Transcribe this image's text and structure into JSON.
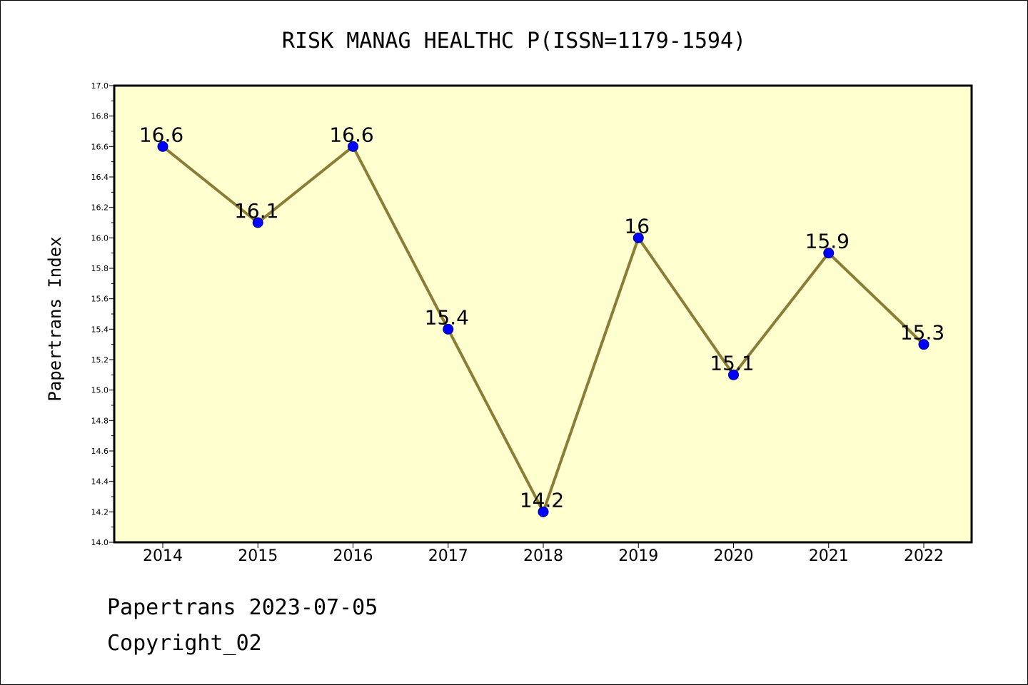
{
  "chart_data": {
    "type": "line",
    "title": "RISK MANAG HEALTHC P(ISSN=1179-1594)",
    "xlabel": "",
    "ylabel": "Papertrans Index",
    "x": [
      "2014",
      "2015",
      "2016",
      "2017",
      "2018",
      "2019",
      "2020",
      "2021",
      "2022"
    ],
    "series": [
      {
        "values": [
          16.6,
          16.1,
          16.6,
          15.4,
          14.2,
          16.0,
          15.1,
          15.9,
          15.3
        ],
        "labels": [
          "16.6",
          "16.1",
          "16.6",
          "15.4",
          "14.2",
          "16",
          "15.1",
          "15.9",
          "15.3"
        ]
      }
    ],
    "ylim": [
      14.0,
      17.0
    ],
    "yticks": [
      "14.0",
      "14.2",
      "14.4",
      "14.6",
      "14.8",
      "15.0",
      "15.2",
      "15.4",
      "15.6",
      "15.8",
      "16.0",
      "16.2",
      "16.4",
      "16.6",
      "16.8",
      "17.0"
    ],
    "grid": false,
    "colors": {
      "plot_background": "#ffffd0",
      "line": "#8b7d35",
      "marker": "#0000ff",
      "marker_edge": "#000080",
      "axes": "#000000"
    }
  },
  "footer": {
    "line1": "Papertrans 2023-07-05",
    "line2": "Copyright_02"
  }
}
